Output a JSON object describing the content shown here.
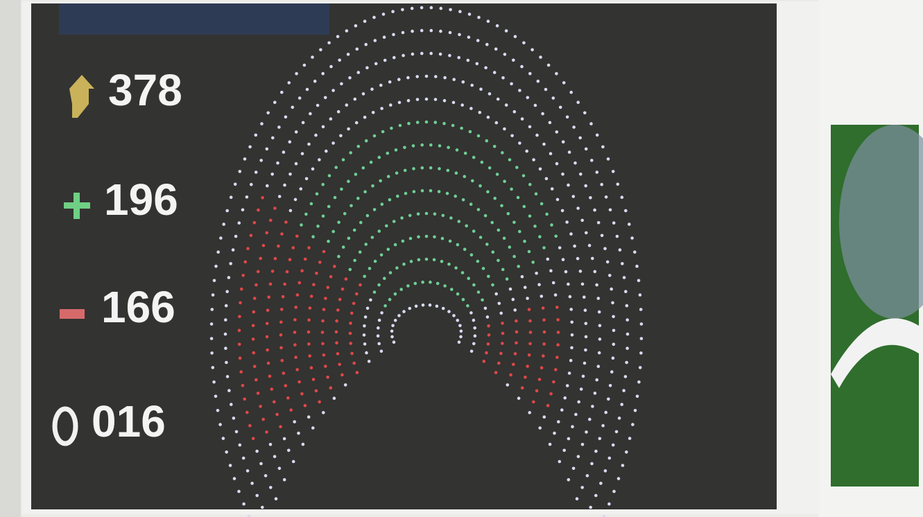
{
  "tally": {
    "present": "378",
    "for": "196",
    "against": "166",
    "abstain": "016"
  }
}
